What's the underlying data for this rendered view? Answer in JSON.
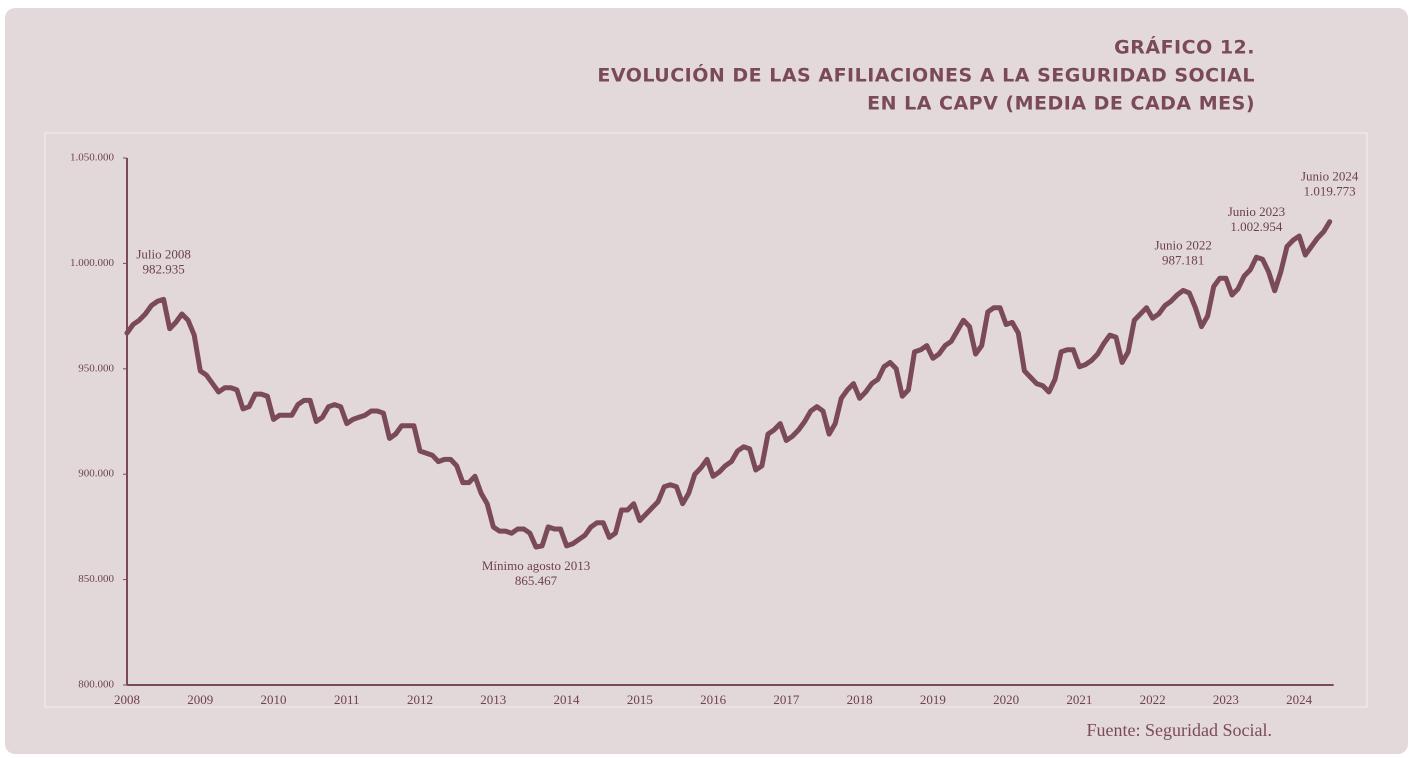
{
  "chart_data": {
    "type": "line",
    "kicker": "GRÁFICO 12.",
    "title_lines": [
      "EVOLUCIÓN DE LAS AFILIACIONES A LA SEGURIDAD SOCIAL",
      "EN LA CAPV (MEDIA DE CADA MES)"
    ],
    "source": "Fuente: Seguridad Social.",
    "categories": [
      "2008",
      null,
      null,
      null,
      null,
      null,
      null,
      null,
      null,
      null,
      null,
      null,
      "2009",
      null,
      null,
      null,
      null,
      null,
      null,
      null,
      null,
      null,
      null,
      null,
      "2010",
      null,
      null,
      null,
      null,
      null,
      null,
      null,
      null,
      null,
      null,
      null,
      "2011",
      null,
      null,
      null,
      null,
      null,
      null,
      null,
      null,
      null,
      null,
      null,
      "2012",
      null,
      null,
      null,
      null,
      null,
      null,
      null,
      null,
      null,
      null,
      null,
      "2013",
      null,
      null,
      null,
      null,
      null,
      null,
      null,
      null,
      null,
      null,
      null,
      "2014",
      null,
      null,
      null,
      null,
      null,
      null,
      null,
      null,
      null,
      null,
      null,
      "2015",
      null,
      null,
      null,
      null,
      null,
      null,
      null,
      null,
      null,
      null,
      null,
      "2016",
      null,
      null,
      null,
      null,
      null,
      null,
      null,
      null,
      null,
      null,
      null,
      "2017",
      null,
      null,
      null,
      null,
      null,
      null,
      null,
      null,
      null,
      null,
      null,
      "2018",
      null,
      null,
      null,
      null,
      null,
      null,
      null,
      null,
      null,
      null,
      null,
      "2019",
      null,
      null,
      null,
      null,
      null,
      null,
      null,
      null,
      null,
      null,
      null,
      "2020",
      null,
      null,
      null,
      null,
      null,
      null,
      null,
      null,
      null,
      null,
      null,
      "2021",
      null,
      null,
      null,
      null,
      null,
      null,
      null,
      null,
      null,
      null,
      null,
      "2022",
      null,
      null,
      null,
      null,
      null,
      null,
      null,
      null,
      null,
      null,
      null,
      "2023",
      null,
      null,
      null,
      null,
      null,
      null,
      null,
      null,
      null,
      null,
      null,
      "2024",
      null,
      null,
      null,
      null,
      null
    ],
    "color": "#7b4a58",
    "values": [
      967000,
      971000,
      973000,
      976000,
      980000,
      982000,
      982935,
      969000,
      972000,
      976000,
      973000,
      966000,
      949000,
      947000,
      943000,
      939000,
      941000,
      941000,
      940000,
      931000,
      932000,
      938000,
      938000,
      937000,
      926000,
      928000,
      928000,
      928000,
      933000,
      935000,
      935000,
      925000,
      927000,
      932000,
      933000,
      932000,
      924000,
      926000,
      927000,
      928000,
      930000,
      930000,
      929000,
      917000,
      919000,
      923000,
      923000,
      923000,
      911000,
      910000,
      909000,
      906000,
      907000,
      907000,
      904000,
      896000,
      896000,
      899000,
      891000,
      886000,
      875000,
      873000,
      873000,
      872000,
      874000,
      874000,
      872000,
      865467,
      866000,
      875000,
      874000,
      874000,
      866000,
      867000,
      869000,
      871000,
      875000,
      877000,
      877000,
      870000,
      872000,
      883000,
      883000,
      886000,
      878000,
      881000,
      884000,
      887000,
      894000,
      895000,
      894000,
      886000,
      891000,
      900000,
      903000,
      907000,
      899000,
      901000,
      904000,
      906000,
      911000,
      913000,
      912000,
      902000,
      904000,
      919000,
      921000,
      924000,
      916000,
      918000,
      921000,
      925000,
      930000,
      932000,
      930000,
      919000,
      924000,
      936000,
      940000,
      943000,
      936000,
      939000,
      943000,
      945000,
      951000,
      953000,
      950000,
      937000,
      940000,
      958000,
      959000,
      961000,
      955000,
      957000,
      961000,
      963000,
      968000,
      973000,
      970000,
      957000,
      961000,
      977000,
      979000,
      979000,
      971000,
      972000,
      967000,
      949000,
      946000,
      943000,
      942000,
      939000,
      945000,
      958000,
      959000,
      959000,
      951000,
      952000,
      954000,
      957000,
      962000,
      966000,
      965000,
      953000,
      958000,
      973000,
      976000,
      979000,
      974000,
      976000,
      980000,
      982000,
      985000,
      987181,
      986000,
      979000,
      970000,
      975000,
      989000,
      993000,
      993000,
      985000,
      988000,
      994000,
      997000,
      1002954,
      1002000,
      996000,
      987000,
      996000,
      1008000,
      1011000,
      1013000,
      1004000,
      1008000,
      1012000,
      1015000,
      1019773
    ],
    "ylim": [
      800000,
      1050000
    ],
    "yticks": [
      {
        "value": 800000,
        "label": "800.000"
      },
      {
        "value": 850000,
        "label": "850.000"
      },
      {
        "value": 900000,
        "label": "900.000"
      },
      {
        "value": 950000,
        "label": "950.000"
      },
      {
        "value": 1000000,
        "label": "1.000.000"
      },
      {
        "value": 1050000,
        "label": "1.050.000"
      }
    ],
    "annotations": [
      {
        "text": "Julio 2008",
        "value": 982935,
        "value_label": "982.935"
      },
      {
        "text": "Mínimo agosto 2013",
        "value": 865467,
        "value_label": "865.467"
      },
      {
        "text": "Junio 2022",
        "value": 987181,
        "value_label": "987.181"
      },
      {
        "text": "Junio 2023",
        "value": 1002954,
        "value_label": "1.002.954"
      },
      {
        "text": "Junio 2024",
        "value": 1019773,
        "value_label": "1.019.773"
      }
    ],
    "grid": false
  }
}
